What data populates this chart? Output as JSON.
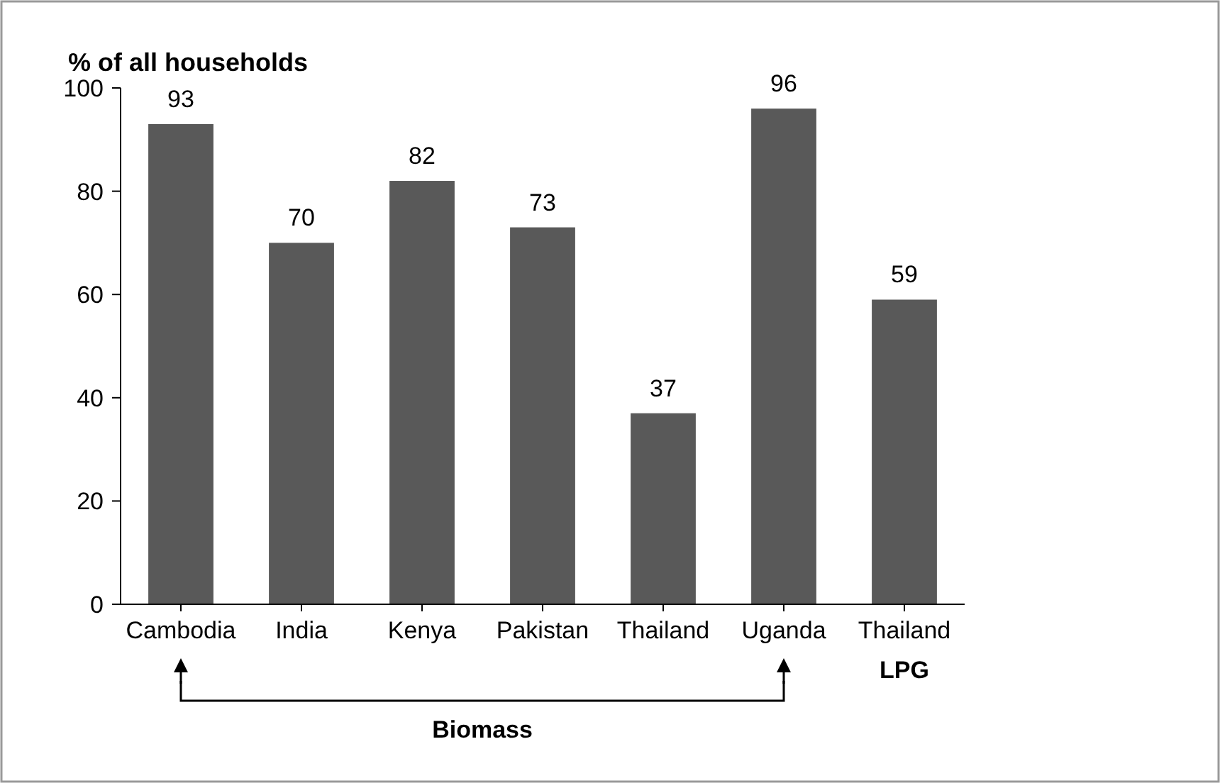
{
  "chart_data": {
    "type": "bar",
    "ylabel": "% of all households",
    "categories": [
      "Cambodia",
      "India",
      "Kenya",
      "Pakistan",
      "Thailand",
      "Uganda",
      "Thailand"
    ],
    "values": [
      93,
      70,
      82,
      73,
      37,
      96,
      59
    ],
    "color": "#595959",
    "ylim": [
      0,
      100
    ],
    "yticks": [
      0,
      20,
      40,
      60,
      80,
      100
    ],
    "data_labels": true,
    "annotations": [
      "LPG",
      "Biomass"
    ]
  }
}
